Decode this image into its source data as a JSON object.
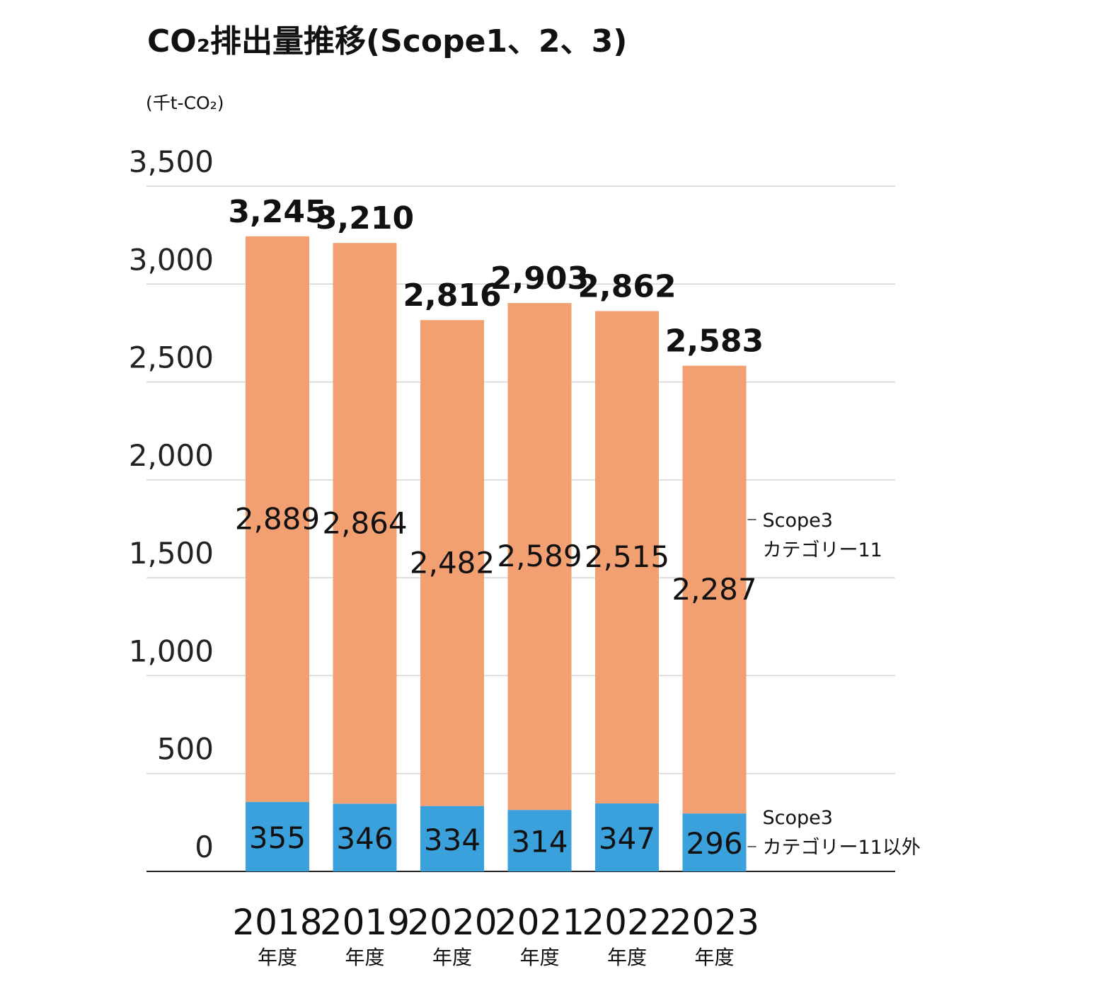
{
  "chart_data": {
    "type": "bar",
    "stacked": true,
    "title": "CO₂排出量推移(Scope1、2、3)",
    "unit_label": "(千t-CO₂)",
    "xlabel": "",
    "ylabel": "(千t-CO₂)",
    "ylim": [
      0,
      3500
    ],
    "yticks": [
      0,
      500,
      1000,
      1500,
      2000,
      2500,
      3000,
      3500
    ],
    "ytick_labels": [
      "0",
      "500",
      "1,000",
      "1,500",
      "2,000",
      "2,500",
      "3,000",
      "3,500"
    ],
    "grid": true,
    "categories": [
      "2018",
      "2019",
      "2020",
      "2021",
      "2022",
      "2023"
    ],
    "category_suffix": "年度",
    "series": [
      {
        "name": "Scope3 カテゴリー11以外",
        "legend_lines": [
          "Scope3",
          "カテゴリー11以外"
        ],
        "color": "#3ba1dc",
        "values": [
          355,
          346,
          334,
          314,
          347,
          296
        ],
        "labels": [
          "355",
          "346",
          "334",
          "314",
          "347",
          "296"
        ]
      },
      {
        "name": "Scope3 カテゴリー11",
        "legend_lines": [
          "Scope3",
          "カテゴリー11"
        ],
        "color": "#f2a071",
        "values": [
          2889,
          2864,
          2482,
          2589,
          2515,
          2287
        ],
        "labels": [
          "2,889",
          "2,864",
          "2,482",
          "2,589",
          "2,515",
          "2,287"
        ]
      }
    ],
    "totals": [
      3245,
      3210,
      2816,
      2903,
      2862,
      2583
    ],
    "total_labels": [
      "3,245",
      "3,210",
      "2,816",
      "2,903",
      "2,862",
      "2,583"
    ],
    "legend_placement": "right",
    "colors": {
      "gridline": "#d4d4d4",
      "axis": "#222222"
    }
  }
}
